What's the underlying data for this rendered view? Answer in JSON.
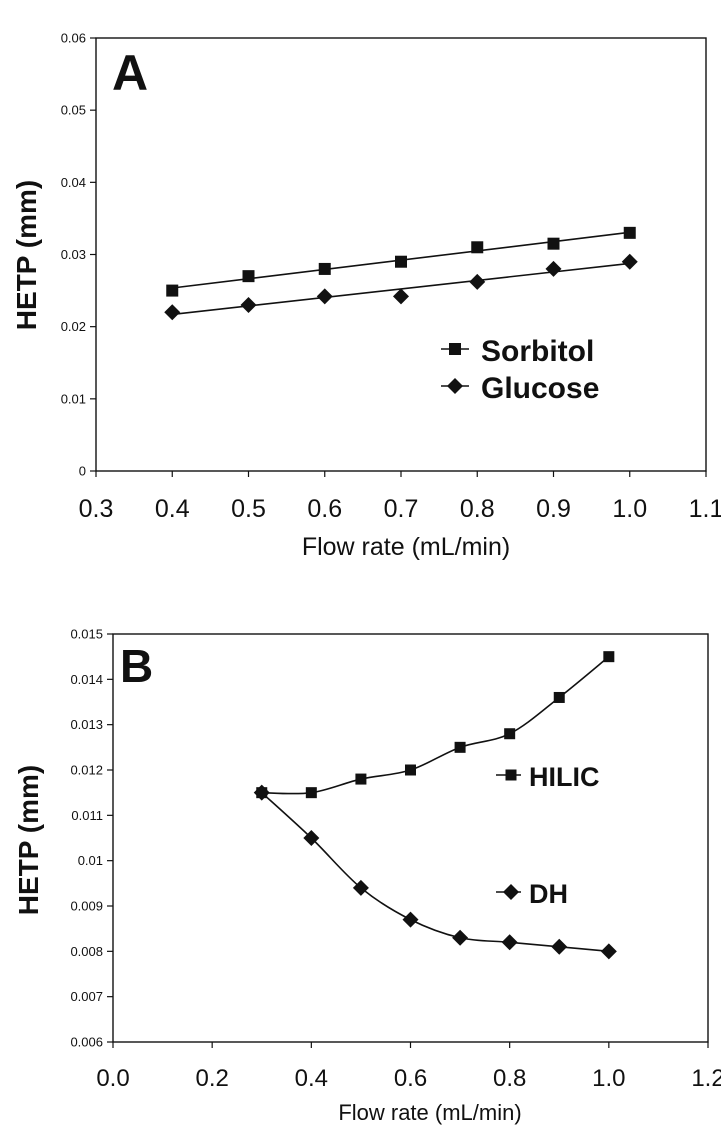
{
  "chart_data": [
    {
      "type": "scatter",
      "panel_label": "A",
      "xlabel": "Flow rate (mL/min)",
      "ylabel": "HETP (mm)",
      "xlim": [
        0.3,
        1.1
      ],
      "ylim": [
        0,
        0.06
      ],
      "xticks": [
        "0.3",
        "0.4",
        "0.5",
        "0.6",
        "0.7",
        "0.8",
        "0.9",
        "1.0",
        "1.1"
      ],
      "yticks": [
        "0",
        "0.01",
        "0.02",
        "0.03",
        "0.04",
        "0.05",
        "0.06"
      ],
      "legend_position": "right",
      "fit": "linear",
      "series": [
        {
          "name": "Sorbitol",
          "marker": "square",
          "x": [
            0.4,
            0.5,
            0.6,
            0.7,
            0.8,
            0.9,
            1.0
          ],
          "y": [
            0.025,
            0.027,
            0.028,
            0.029,
            0.031,
            0.0315,
            0.033
          ]
        },
        {
          "name": "Glucose",
          "marker": "diamond",
          "x": [
            0.4,
            0.5,
            0.6,
            0.7,
            0.8,
            0.9,
            1.0
          ],
          "y": [
            0.022,
            0.023,
            0.0242,
            0.0242,
            0.0262,
            0.028,
            0.029
          ]
        }
      ]
    },
    {
      "type": "line",
      "panel_label": "B",
      "xlabel": "Flow rate (mL/min)",
      "ylabel": "HETP (mm)",
      "xlim": [
        0,
        1.2
      ],
      "ylim": [
        0.006,
        0.015
      ],
      "xticks": [
        "0.0",
        "0.2",
        "0.4",
        "0.6",
        "0.8",
        "1.0",
        "1.2"
      ],
      "yticks": [
        "0.006",
        "0.007",
        "0.008",
        "0.009",
        "0.01",
        "0.011",
        "0.012",
        "0.013",
        "0.014",
        "0.015"
      ],
      "legend_position": "right",
      "fit": "smooth",
      "series": [
        {
          "name": "HILIC",
          "marker": "square",
          "x": [
            0.3,
            0.4,
            0.5,
            0.6,
            0.7,
            0.8,
            0.9,
            1.0
          ],
          "y": [
            0.0115,
            0.0115,
            0.0118,
            0.012,
            0.0125,
            0.0128,
            0.0136,
            0.0145
          ]
        },
        {
          "name": "DH",
          "marker": "diamond",
          "x": [
            0.3,
            0.4,
            0.5,
            0.6,
            0.7,
            0.8,
            0.9,
            1.0
          ],
          "y": [
            0.0115,
            0.0105,
            0.0094,
            0.0087,
            0.0083,
            0.0082,
            0.0081,
            0.008
          ]
        }
      ]
    }
  ]
}
